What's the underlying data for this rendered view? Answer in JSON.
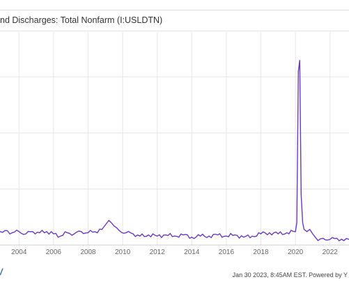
{
  "header": {
    "title": "nd Discharges: Total Nonfarm (I:USLDTN)"
  },
  "footer": {
    "timestamp_text": "Jan 30 2023, 8:45AM EST. Powered by Y"
  },
  "brand": {
    "icon": "ycharts-logo-icon",
    "glyph": "/"
  },
  "colors": {
    "line": "#6a38c8",
    "grid": "#e6e6e6",
    "axis_text": "#666666"
  },
  "chart_data": {
    "type": "line",
    "title": "nd Discharges: Total Nonfarm (I:USLDTN)",
    "xlabel": "",
    "ylabel": "",
    "grid": true,
    "x_tick_labels": [
      "2004",
      "2006",
      "2008",
      "2010",
      "2012",
      "2014",
      "2016",
      "2018",
      "2020",
      "2022"
    ],
    "x_range": [
      2002.9,
      2023.1
    ],
    "y_range": [
      0,
      1.9
    ],
    "series": [
      {
        "x": [
          2002.9,
          2003.2,
          2003.6,
          2004.0,
          2004.4,
          2004.8,
          2005.2,
          2005.6,
          2006.0,
          2006.4,
          2006.8,
          2007.2,
          2007.6,
          2008.0,
          2008.4,
          2008.8,
          2009.0,
          2009.2,
          2009.5,
          2009.8,
          2010.2,
          2010.6,
          2011.0,
          2011.5,
          2012.0,
          2012.5,
          2013.0,
          2013.5,
          2014.0,
          2014.5,
          2015.0,
          2015.5,
          2016.0,
          2016.5,
          2017.0,
          2017.5,
          2018.0,
          2018.5,
          2019.0,
          2019.5,
          2020.0,
          2020.08,
          2020.17,
          2020.25,
          2020.33,
          2020.42,
          2020.5,
          2020.67,
          2020.83,
          2021.0,
          2021.3,
          2021.6,
          2022.0,
          2022.4,
          2022.8,
          2023.1
        ],
        "y": [
          0.12,
          0.13,
          0.11,
          0.12,
          0.1,
          0.12,
          0.11,
          0.12,
          0.1,
          0.08,
          0.11,
          0.1,
          0.12,
          0.11,
          0.12,
          0.14,
          0.18,
          0.22,
          0.17,
          0.13,
          0.11,
          0.1,
          0.08,
          0.09,
          0.08,
          0.09,
          0.08,
          0.09,
          0.07,
          0.08,
          0.08,
          0.09,
          0.08,
          0.09,
          0.07,
          0.08,
          0.1,
          0.11,
          0.1,
          0.11,
          0.12,
          0.2,
          1.55,
          1.65,
          0.45,
          0.2,
          0.14,
          0.12,
          0.14,
          0.1,
          0.04,
          0.06,
          0.05,
          0.06,
          0.04,
          0.05
        ]
      }
    ]
  }
}
